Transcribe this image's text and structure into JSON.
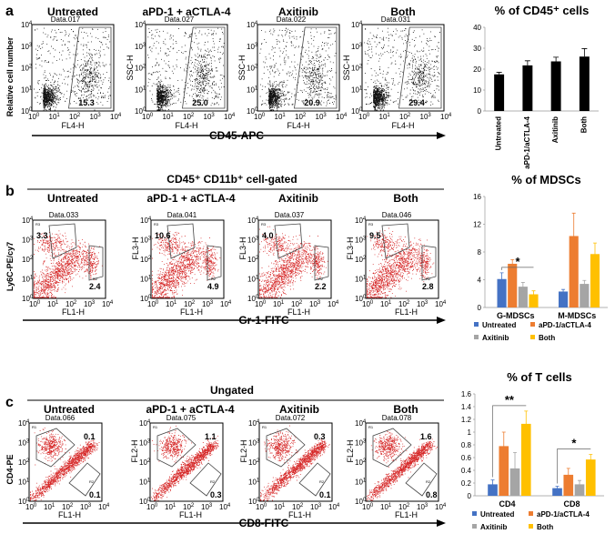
{
  "panels": {
    "a": {
      "letter": "a",
      "groups": [
        "Untreated",
        "aPD-1 + aCTLA-4",
        "Axitinib",
        "Both"
      ],
      "data_ids": [
        "Data.017",
        "Data.027",
        "Data.022",
        "Data.031"
      ],
      "values": [
        "15.3",
        "25.0",
        "20.9",
        "29.4"
      ],
      "ylabel_first": "Relative cell number",
      "ylabel_other": "SSC-H",
      "xlabel": "FL4-H",
      "gate_label": "R1",
      "marker": "CD45-APC"
    },
    "b": {
      "letter": "b",
      "header": "CD45⁺ CD11b⁺ cell-gated",
      "groups": [
        "Untreated",
        "aPD-1 + aCTLA-4",
        "Axitinib",
        "Both"
      ],
      "data_ids": [
        "Data.033",
        "Data.041",
        "Data.037",
        "Data.046"
      ],
      "upper_values": [
        "3.3",
        "10.6",
        "4.0",
        "9.5"
      ],
      "lower_values": [
        "2.4",
        "4.9",
        "2.2",
        "2.8"
      ],
      "ylabel_first": "Ly6C-PE/cy7",
      "ylabel_other": "FL3-H",
      "xlabel": "FL1-H",
      "gate_upper_label": "R3",
      "gate_lower_label": "R2",
      "marker": "Gr-1-FITC"
    },
    "c": {
      "letter": "c",
      "header": "Ungated",
      "groups": [
        "Untreated",
        "aPD-1 + aCTLA-4",
        "Axitinib",
        "Both"
      ],
      "data_ids": [
        "Data.066",
        "Data.075",
        "Data.072",
        "Data.078"
      ],
      "upper_values": [
        "0.1",
        "1.1",
        "0.3",
        "1.6"
      ],
      "lower_values": [
        "0.1",
        "0.3",
        "0.1",
        "0.8"
      ],
      "ylabel_first": "CD4-PE",
      "ylabel_other": "FL2-H",
      "xlabel": "FL1-H",
      "gate_upper_label": "R1",
      "gate_lower_label": "R2",
      "marker": "CD8-FITC"
    }
  },
  "log_ticks": [
    "10",
    "10",
    "10",
    "10",
    "10"
  ],
  "log_exps": [
    "0",
    "1",
    "2",
    "3",
    "4"
  ],
  "colors": {
    "scatter_black": "#111111",
    "scatter_red": "#d62828",
    "untreated": "#4472c4",
    "apd1": "#ed7d31",
    "axitinib": "#a5a5a5",
    "both": "#ffc000",
    "black_bar": "#000000"
  },
  "chart_data": [
    {
      "type": "bar",
      "title": "% of CD45⁺  cells",
      "categories": [
        "Untreated",
        "aPD-1/aCTLA-4",
        "Axitinib",
        "Both"
      ],
      "values": [
        17.5,
        21.8,
        23.7,
        26.0
      ],
      "errors": [
        1.0,
        2.2,
        2.0,
        3.8
      ],
      "ylim": [
        0,
        40
      ],
      "yticks": [
        "0",
        "10",
        "20",
        "30",
        "40"
      ],
      "xlabel": "",
      "ylabel": ""
    },
    {
      "type": "bar",
      "title": "% of MDSCs",
      "categories": [
        "G-MDSCs",
        "M-MDSCs"
      ],
      "series": [
        {
          "name": "Untreated",
          "values": [
            4.1,
            2.3
          ],
          "errors": [
            0.9,
            0.3
          ]
        },
        {
          "name": "aPD-1/aCTLA-4",
          "values": [
            6.3,
            10.3
          ],
          "errors": [
            0.6,
            3.3
          ]
        },
        {
          "name": "Axitinib",
          "values": [
            3.0,
            3.4
          ],
          "errors": [
            0.6,
            0.5
          ]
        },
        {
          "name": "Both",
          "values": [
            1.9,
            7.7
          ],
          "errors": [
            0.5,
            1.6
          ]
        }
      ],
      "ylim": [
        0,
        16
      ],
      "yticks": [
        "0",
        "4",
        "8",
        "12",
        "16"
      ],
      "annotations": [
        "*"
      ],
      "legend": "bottom"
    },
    {
      "type": "bar",
      "title": "% of T cells",
      "categories": [
        "CD4",
        "CD8"
      ],
      "series": [
        {
          "name": "Untreated",
          "values": [
            0.18,
            0.12
          ],
          "errors": [
            0.07,
            0.03
          ]
        },
        {
          "name": "aPD-1/aCTLA-4",
          "values": [
            0.78,
            0.33
          ],
          "errors": [
            0.22,
            0.1
          ]
        },
        {
          "name": "Axitinib",
          "values": [
            0.43,
            0.18
          ],
          "errors": [
            0.25,
            0.06
          ]
        },
        {
          "name": "Both",
          "values": [
            1.13,
            0.57
          ],
          "errors": [
            0.2,
            0.08
          ]
        }
      ],
      "ylim": [
        0,
        1.6
      ],
      "yticks": [
        "0",
        "0.2",
        "0.4",
        "0.6",
        "0.8",
        "1",
        "1.2",
        "1.4",
        "1.6"
      ],
      "annotations": [
        "**",
        "*"
      ],
      "legend": "bottom"
    }
  ]
}
